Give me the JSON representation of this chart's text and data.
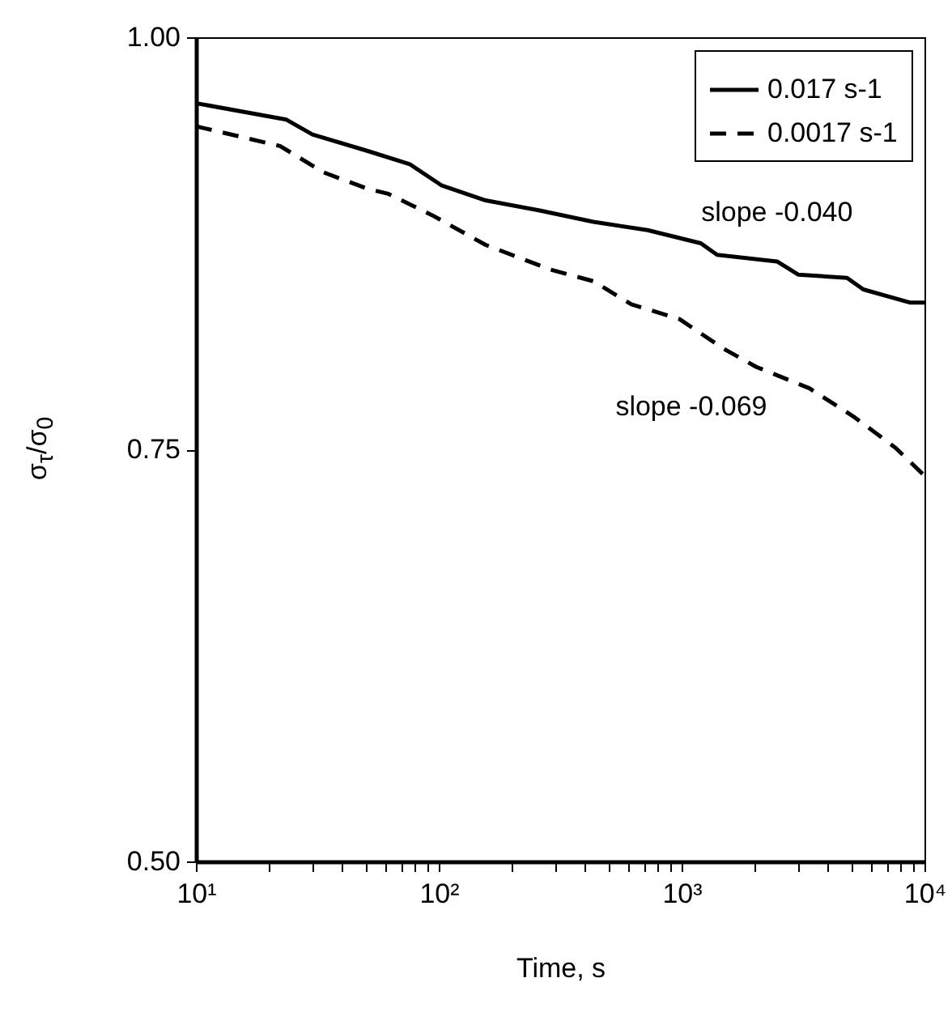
{
  "chart_data": {
    "type": "line",
    "xlabel": "Time, s",
    "ylabel": "σ$_{τ}$/σ$_{0}$",
    "log": "x",
    "legend": "top right",
    "marker": "none",
    "xlim": [
      10,
      10000
    ],
    "xticks": [
      {
        "value": 10,
        "label": "10¹"
      },
      {
        "value": 20,
        "label": null
      },
      {
        "value": 30,
        "label": null
      },
      {
        "value": 40,
        "label": null
      },
      {
        "value": 50,
        "label": null
      },
      {
        "value": 60,
        "label": null
      },
      {
        "value": 70,
        "label": null
      },
      {
        "value": 80,
        "label": null
      },
      {
        "value": 90,
        "label": null
      },
      {
        "value": 100,
        "label": "10²"
      },
      {
        "value": 200,
        "label": null
      },
      {
        "value": 300,
        "label": null
      },
      {
        "value": 400,
        "label": null
      },
      {
        "value": 500,
        "label": null
      },
      {
        "value": 600,
        "label": null
      },
      {
        "value": 700,
        "label": null
      },
      {
        "value": 800,
        "label": null
      },
      {
        "value": 900,
        "label": null
      },
      {
        "value": 1000,
        "label": "10³"
      },
      {
        "value": 2000,
        "label": null
      },
      {
        "value": 3000,
        "label": null
      },
      {
        "value": 4000,
        "label": null
      },
      {
        "value": 5000,
        "label": null
      },
      {
        "value": 6000,
        "label": null
      },
      {
        "value": 7000,
        "label": null
      },
      {
        "value": 8000,
        "label": null
      },
      {
        "value": 9000,
        "label": null
      },
      {
        "value": 10000,
        "label": "10⁴"
      }
    ],
    "ylim": [
      0.5,
      1.0
    ],
    "yticks": [
      {
        "value": 0.5,
        "label": "0.50"
      },
      {
        "value": 0.75,
        "label": "0.75"
      },
      {
        "value": 1.0,
        "label": "1.00"
      }
    ],
    "series": [
      {
        "name": "0.017 s-1",
        "color": "#000000",
        "line_style": "solid",
        "x": [
          10,
          23.6,
          30.2,
          51,
          76,
          103,
          156,
          258,
          433,
          724,
          1200,
          1400,
          2470,
          3020,
          4800,
          5600,
          8750,
          10000
        ],
        "values": [
          0.96,
          0.95,
          0.941,
          0.931,
          0.923,
          0.91,
          0.901,
          0.895,
          0.888,
          0.883,
          0.875,
          0.868,
          0.864,
          0.856,
          0.854,
          0.847,
          0.839,
          0.839
        ]
      },
      {
        "name": "0.0017 s-1",
        "color": "#000000",
        "line_style": "dashed",
        "x": [
          10,
          22.2,
          33.6,
          51,
          62,
          94,
          156,
          289,
          433,
          621,
          980,
          1490,
          2030,
          3360,
          5090,
          7590,
          10000
        ],
        "values": [
          0.946,
          0.934,
          0.918,
          0.908,
          0.905,
          0.892,
          0.874,
          0.859,
          0.852,
          0.838,
          0.829,
          0.811,
          0.8,
          0.787,
          0.77,
          0.751,
          0.734
        ]
      }
    ],
    "annotations": [
      "slope -0.040",
      "slope -0.069"
    ]
  }
}
